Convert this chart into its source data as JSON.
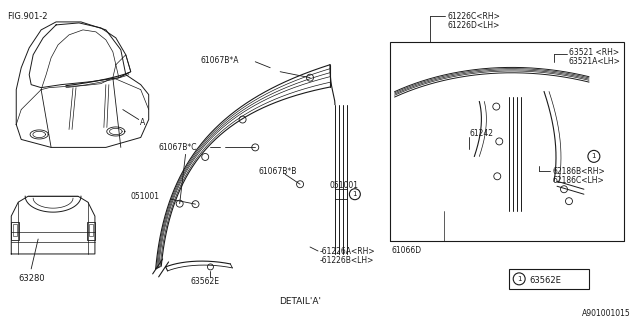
{
  "background_color": "#ffffff",
  "fig_width": 6.4,
  "fig_height": 3.2,
  "dpi": 100,
  "labels": {
    "fig_ref": "FIG.901-2",
    "detail_a": "DETAIL'A'",
    "part_a": "A",
    "footer": "A901001015",
    "part_63280": "63280",
    "part_63562E_main": "63562E",
    "part_63562E_legend": "63562E",
    "part_051001_top": "051001",
    "part_051001_bot": "051001",
    "part_61067B_A": "61067B*A",
    "part_61067B_C": "61067B*C",
    "part_61067B_B": "61067B*B",
    "part_61226C_RH": "61226C<RH>",
    "part_61226D_LH": "61226D<LH>",
    "part_63521_RH": "63521 <RH>",
    "part_63521A_LH": "63521A<LH>",
    "part_61242": "61242",
    "part_62186B_RH": "62186B<RH>",
    "part_62186C_LH": "62186C<LH>",
    "part_61066D": "61066D",
    "part_61226A_RH": "-61226A<RH>",
    "part_61226B_LH": "-61226B<LH>",
    "legend_1": "1"
  },
  "colors": {
    "line": "#1a1a1a",
    "background": "#ffffff",
    "text": "#1a1a1a"
  }
}
